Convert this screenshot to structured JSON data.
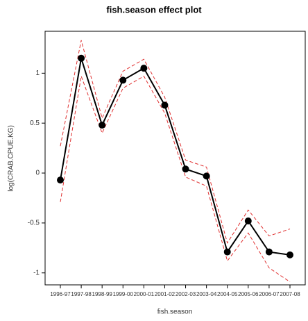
{
  "chart_data": {
    "type": "line",
    "title": "fish.season effect plot",
    "x_label": "fish.season",
    "y_label": "log(CRAB.CPUE.KG)",
    "categories": [
      "1996-97",
      "1997-98",
      "1998-99",
      "1999-00",
      "2000-01",
      "2001-02",
      "2002-03",
      "2003-04",
      "2004-05",
      "2005-06",
      "2006-07",
      "2007-08"
    ],
    "series": [
      {
        "color": "#000000",
        "style": "solid",
        "markers": true,
        "values": [
          -0.07,
          1.15,
          0.48,
          0.93,
          1.05,
          0.68,
          0.04,
          -0.03,
          -0.79,
          -0.48,
          -0.79,
          -0.82
        ]
      },
      {
        "color": "#e03030",
        "style": "dashed",
        "markers": false,
        "values": [
          0.27,
          1.33,
          0.55,
          1.02,
          1.14,
          0.76,
          0.13,
          0.06,
          -0.7,
          -0.37,
          -0.63,
          -0.56
        ]
      },
      {
        "color": "#e03030",
        "style": "dashed",
        "markers": false,
        "values": [
          -0.29,
          0.97,
          0.4,
          0.85,
          0.97,
          0.6,
          -0.04,
          -0.13,
          -0.88,
          -0.6,
          -0.95,
          -1.09
        ]
      }
    ],
    "ylim": [
      -1.12,
      1.42
    ],
    "yticks": [
      -1,
      -0.5,
      0,
      0.5,
      1
    ],
    "grid": false
  }
}
